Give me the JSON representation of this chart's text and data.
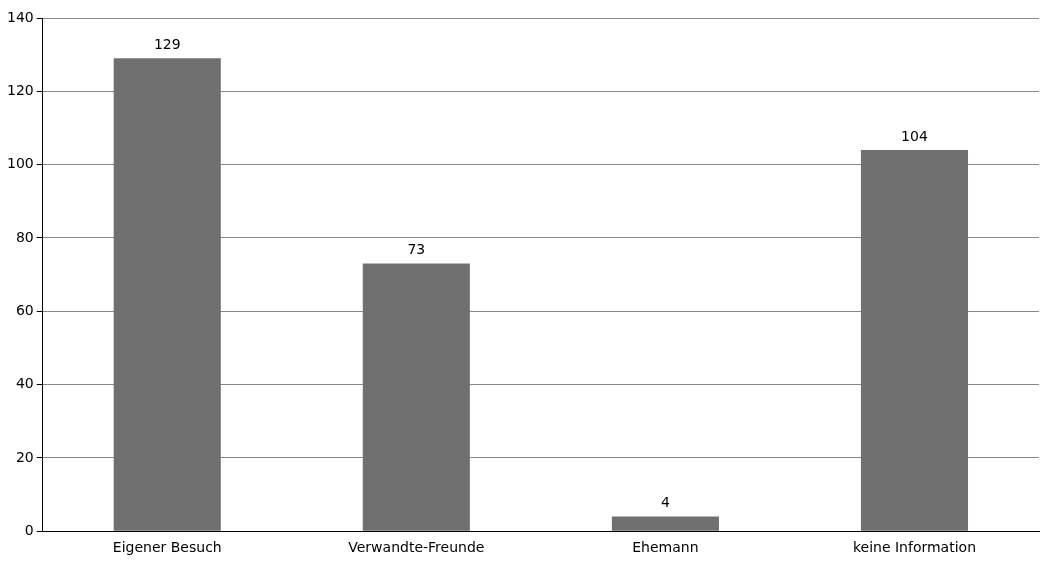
{
  "chart_data": {
    "type": "bar",
    "categories": [
      "Eigener Besuch",
      "Verwandte-Freunde",
      "Ehemann",
      "keine Information"
    ],
    "values": [
      129,
      73,
      4,
      104
    ],
    "color": "#707070",
    "ylim": [
      0,
      140
    ],
    "yticks": [
      0,
      20,
      40,
      60,
      80,
      100,
      120,
      140
    ],
    "grid": "y",
    "data_labels": true,
    "legend": false
  }
}
